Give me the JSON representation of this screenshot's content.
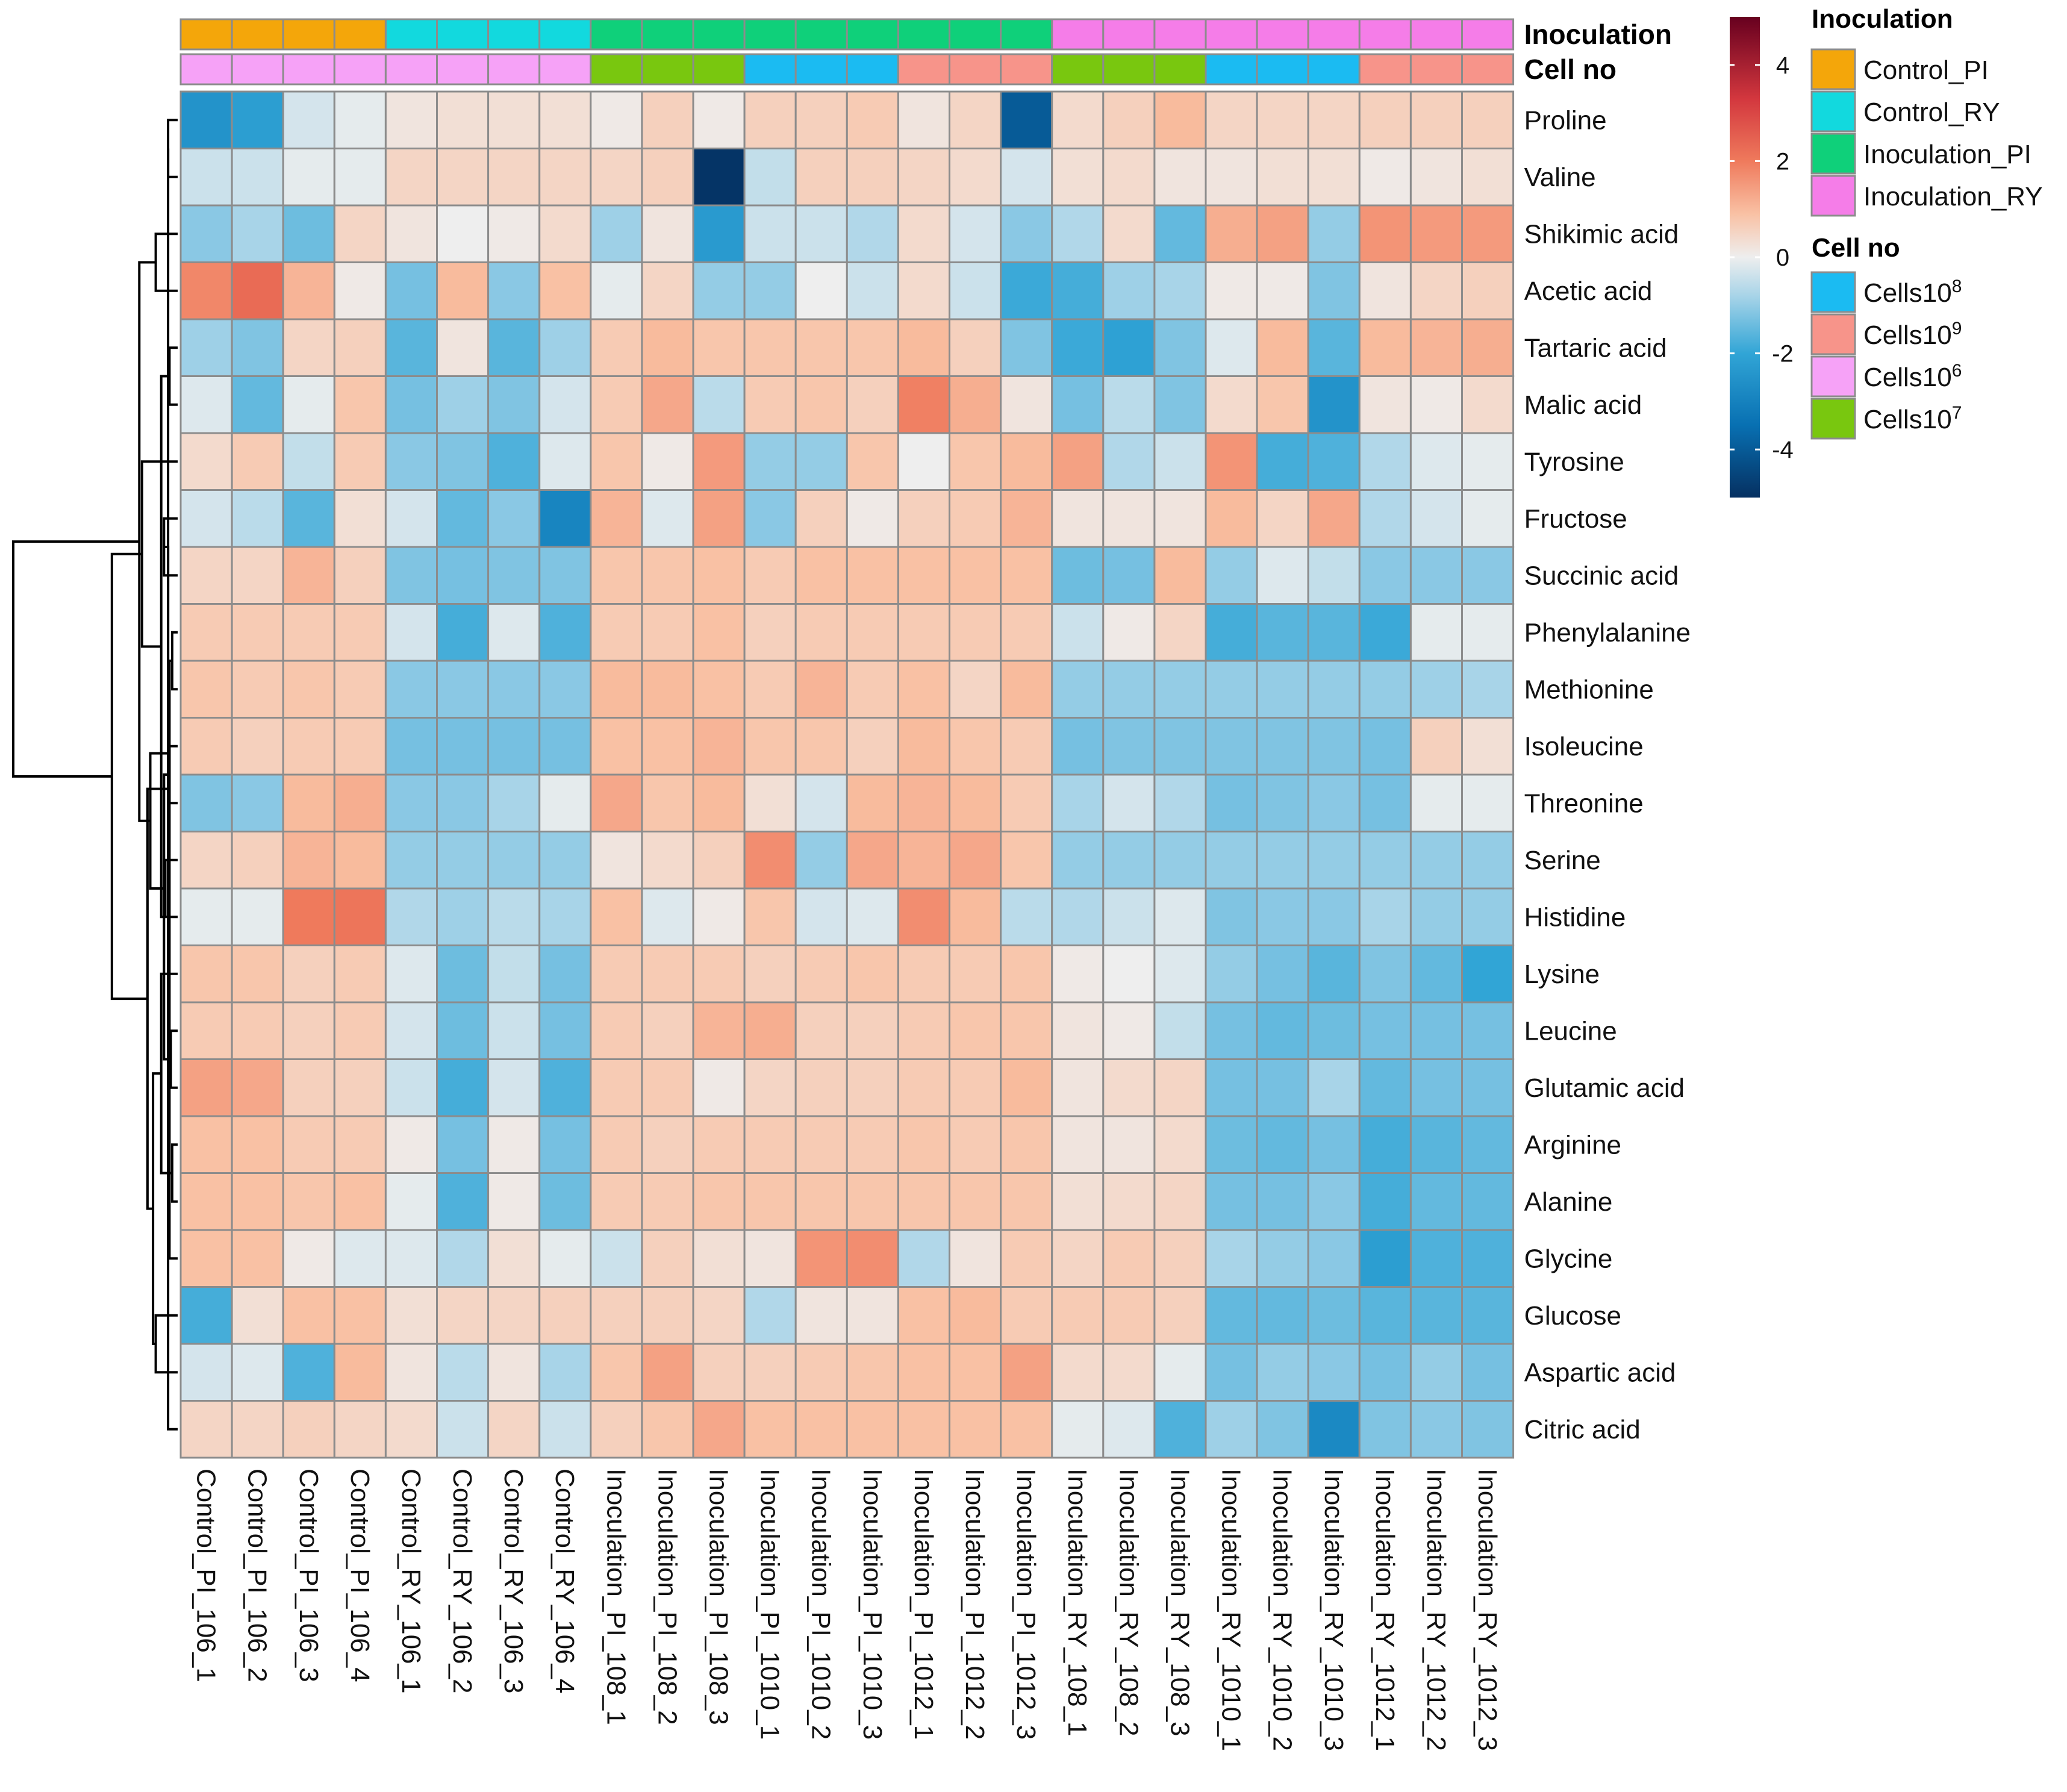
{
  "chart_data": {
    "type": "heatmap",
    "title": "",
    "rows": [
      "Proline",
      "Valine",
      "Shikimic acid",
      "Acetic acid",
      "Tartaric acid",
      "Malic acid",
      "Tyrosine",
      "Fructose",
      "Succinic acid",
      "Phenylalanine",
      "Methionine",
      "Isoleucine",
      "Threonine",
      "Serine",
      "Histidine",
      "Lysine",
      "Leucine",
      "Glutamic acid",
      "Arginine",
      "Alanine",
      "Glycine",
      "Glucose",
      "Aspartic acid",
      "Citric acid"
    ],
    "columns": [
      "Control_PI_106_1",
      "Control_PI_106_2",
      "Control_PI_106_3",
      "Control_PI_106_4",
      "Control_RY_106_1",
      "Control_RY_106_2",
      "Control_RY_106_3",
      "Control_RY_106_4",
      "Inoculation_PI_108_1",
      "Inoculation_PI_108_2",
      "Inoculation_PI_108_3",
      "Inoculation_PI_1010_1",
      "Inoculation_PI_1010_2",
      "Inoculation_PI_1010_3",
      "Inoculation_PI_1012_1",
      "Inoculation_PI_1012_2",
      "Inoculation_PI_1012_3",
      "Inoculation_RY_108_1",
      "Inoculation_RY_108_2",
      "Inoculation_RY_108_3",
      "Inoculation_RY_1010_1",
      "Inoculation_RY_1010_2",
      "Inoculation_RY_1010_3",
      "Inoculation_RY_1012_1",
      "Inoculation_RY_1012_2",
      "Inoculation_RY_1012_3"
    ],
    "values": [
      [
        -2.5,
        -2.2,
        -0.3,
        -0.1,
        0.2,
        0.3,
        0.3,
        0.3,
        0.1,
        0.6,
        0.1,
        0.6,
        0.6,
        0.7,
        0.2,
        0.5,
        -4.0,
        0.4,
        0.6,
        1.0,
        0.5,
        0.5,
        0.5,
        0.6,
        0.6,
        0.6
      ],
      [
        -0.4,
        -0.4,
        -0.1,
        -0.1,
        0.5,
        0.5,
        0.5,
        0.5,
        0.5,
        0.6,
        -4.9,
        -0.5,
        0.6,
        0.6,
        0.5,
        0.4,
        -0.3,
        0.3,
        0.4,
        0.2,
        0.2,
        0.3,
        0.3,
        0.1,
        0.2,
        0.3
      ],
      [
        -1.1,
        -0.8,
        -1.4,
        0.5,
        0.2,
        0.0,
        0.1,
        0.4,
        -0.9,
        0.2,
        -2.3,
        -0.4,
        -0.4,
        -0.7,
        0.4,
        -0.3,
        -1.1,
        -0.7,
        0.4,
        -1.5,
        1.2,
        1.4,
        -1.0,
        1.6,
        1.5,
        1.5
      ],
      [
        1.8,
        2.3,
        1.1,
        0.1,
        -1.3,
        1.0,
        -1.1,
        0.9,
        -0.1,
        0.5,
        -1.0,
        -1.0,
        0.0,
        -0.4,
        0.4,
        -0.4,
        -1.9,
        -1.8,
        -0.9,
        -0.8,
        0.1,
        0.1,
        -1.2,
        0.2,
        0.5,
        0.6
      ],
      [
        -0.9,
        -1.2,
        0.5,
        0.6,
        -1.6,
        0.2,
        -1.6,
        -0.9,
        0.7,
        1.0,
        0.8,
        0.8,
        0.8,
        0.8,
        1.0,
        0.6,
        -1.2,
        -1.9,
        -2.1,
        -1.2,
        -0.2,
        1.0,
        -1.6,
        1.0,
        1.1,
        1.2
      ],
      [
        -0.2,
        -1.5,
        -0.1,
        0.8,
        -1.3,
        -0.9,
        -1.2,
        -0.3,
        0.7,
        1.3,
        -0.6,
        0.7,
        0.8,
        0.6,
        1.9,
        1.2,
        0.2,
        -1.3,
        -0.6,
        -1.2,
        0.4,
        0.8,
        -2.5,
        0.2,
        0.1,
        0.4
      ],
      [
        0.4,
        0.7,
        -0.5,
        0.7,
        -1.1,
        -1.2,
        -1.7,
        -0.2,
        0.8,
        0.1,
        1.5,
        -1.0,
        -1.0,
        0.8,
        0.0,
        0.8,
        1.0,
        1.4,
        -0.7,
        -0.4,
        1.6,
        -1.8,
        -1.7,
        -0.7,
        -0.2,
        -0.1
      ],
      [
        -0.3,
        -0.6,
        -1.6,
        0.3,
        -0.3,
        -1.5,
        -1.1,
        -2.9,
        1.1,
        -0.2,
        1.4,
        -1.1,
        0.6,
        0.1,
        0.6,
        0.7,
        1.1,
        0.2,
        0.2,
        0.2,
        1.0,
        0.5,
        1.3,
        -0.7,
        -0.3,
        -0.1
      ],
      [
        0.5,
        0.5,
        1.1,
        0.6,
        -1.2,
        -1.3,
        -1.2,
        -1.2,
        0.8,
        0.8,
        0.9,
        0.7,
        0.9,
        0.9,
        0.9,
        0.9,
        0.9,
        -1.4,
        -1.3,
        1.0,
        -1.0,
        -0.2,
        -0.5,
        -1.1,
        -1.1,
        -1.1
      ],
      [
        0.7,
        0.7,
        0.7,
        0.7,
        -0.3,
        -1.8,
        -0.2,
        -1.7,
        0.7,
        0.7,
        0.9,
        0.6,
        0.7,
        0.7,
        0.7,
        0.7,
        0.7,
        -0.4,
        0.1,
        0.5,
        -1.8,
        -1.6,
        -1.6,
        -1.9,
        -0.1,
        -0.1
      ],
      [
        0.8,
        0.7,
        0.8,
        0.7,
        -1.1,
        -1.1,
        -1.1,
        -1.1,
        1.0,
        1.0,
        0.9,
        0.7,
        1.1,
        0.7,
        0.9,
        0.5,
        1.0,
        -1.0,
        -1.0,
        -1.0,
        -1.0,
        -1.0,
        -1.0,
        -1.0,
        -0.9,
        -0.8
      ],
      [
        0.7,
        0.6,
        0.7,
        0.7,
        -1.3,
        -1.3,
        -1.3,
        -1.3,
        0.9,
        0.9,
        1.1,
        0.8,
        0.8,
        0.6,
        1.0,
        0.8,
        0.7,
        -1.3,
        -1.2,
        -1.2,
        -1.2,
        -1.2,
        -1.2,
        -1.3,
        0.6,
        0.3
      ],
      [
        -1.2,
        -1.1,
        1.0,
        1.2,
        -1.1,
        -1.1,
        -0.8,
        -0.1,
        1.3,
        0.8,
        1.0,
        0.3,
        -0.3,
        1.0,
        1.1,
        1.0,
        0.7,
        -0.8,
        -0.3,
        -0.7,
        -1.3,
        -1.2,
        -1.1,
        -1.3,
        -0.1,
        -0.1
      ],
      [
        0.5,
        0.6,
        1.1,
        1.0,
        -1.0,
        -1.0,
        -1.0,
        -1.0,
        0.2,
        0.4,
        0.6,
        1.7,
        -1.0,
        1.3,
        1.1,
        1.3,
        0.8,
        -1.0,
        -1.0,
        -1.0,
        -1.0,
        -1.0,
        -1.0,
        -1.0,
        -1.0,
        -1.0
      ],
      [
        -0.1,
        -0.1,
        2.0,
        2.1,
        -0.7,
        -0.9,
        -0.6,
        -0.8,
        0.9,
        -0.2,
        0.1,
        0.8,
        -0.3,
        -0.2,
        1.7,
        1.0,
        -0.6,
        -0.7,
        -0.4,
        -0.2,
        -1.2,
        -1.1,
        -1.1,
        -0.8,
        -1.0,
        -1.0
      ],
      [
        0.8,
        0.8,
        0.6,
        0.7,
        -0.2,
        -1.4,
        -0.5,
        -1.3,
        0.7,
        0.7,
        0.7,
        0.6,
        0.7,
        0.8,
        0.7,
        0.7,
        0.8,
        0.1,
        0.0,
        -0.2,
        -1.0,
        -1.3,
        -1.6,
        -1.2,
        -1.5,
        -2.0
      ],
      [
        0.7,
        0.7,
        0.6,
        0.7,
        -0.3,
        -1.4,
        -0.4,
        -1.3,
        0.7,
        0.6,
        1.1,
        1.2,
        0.6,
        0.6,
        0.7,
        0.8,
        0.8,
        0.2,
        0.1,
        -0.5,
        -1.3,
        -1.5,
        -1.4,
        -1.3,
        -1.3,
        -1.3
      ],
      [
        1.4,
        1.3,
        0.6,
        0.6,
        -0.4,
        -1.8,
        -0.3,
        -1.7,
        0.7,
        0.7,
        0.1,
        0.5,
        0.6,
        0.6,
        0.7,
        0.7,
        1.0,
        0.2,
        0.4,
        0.5,
        -1.3,
        -1.3,
        -0.8,
        -1.5,
        -1.3,
        -1.3
      ],
      [
        0.9,
        0.9,
        0.7,
        0.7,
        0.1,
        -1.3,
        0.1,
        -1.3,
        0.7,
        0.6,
        0.7,
        0.7,
        0.7,
        0.7,
        0.8,
        0.7,
        0.8,
        0.2,
        0.2,
        0.4,
        -1.4,
        -1.5,
        -1.3,
        -1.8,
        -1.6,
        -1.5
      ],
      [
        0.9,
        0.9,
        0.8,
        0.9,
        -0.1,
        -1.7,
        0.1,
        -1.4,
        0.7,
        0.7,
        0.8,
        0.8,
        0.8,
        0.8,
        0.8,
        0.8,
        0.8,
        0.3,
        0.4,
        0.5,
        -1.3,
        -1.3,
        -1.1,
        -1.8,
        -1.5,
        -1.5
      ],
      [
        0.9,
        0.9,
        0.1,
        -0.2,
        -0.2,
        -0.7,
        0.3,
        -0.1,
        -0.4,
        0.6,
        0.3,
        0.2,
        1.6,
        1.7,
        -0.7,
        0.2,
        0.7,
        0.5,
        0.7,
        0.6,
        -0.8,
        -1.0,
        -1.1,
        -2.2,
        -1.7,
        -1.7
      ],
      [
        -1.8,
        0.3,
        0.9,
        0.9,
        0.3,
        0.5,
        0.5,
        0.6,
        0.6,
        0.6,
        0.5,
        -0.7,
        0.2,
        0.2,
        0.9,
        1.0,
        0.7,
        0.7,
        0.7,
        0.6,
        -1.5,
        -1.5,
        -1.4,
        -1.6,
        -1.6,
        -1.6
      ],
      [
        -0.3,
        -0.2,
        -1.7,
        1.0,
        0.2,
        -0.6,
        0.2,
        -0.8,
        0.8,
        1.4,
        0.6,
        0.6,
        0.7,
        0.8,
        0.9,
        0.9,
        1.4,
        0.4,
        0.4,
        -0.1,
        -1.3,
        -1.0,
        -1.1,
        -1.3,
        -1.0,
        -1.3
      ],
      [
        0.5,
        0.5,
        0.6,
        0.5,
        0.4,
        -0.4,
        0.5,
        -0.4,
        0.6,
        0.8,
        1.3,
        0.9,
        0.9,
        0.9,
        0.9,
        0.9,
        0.9,
        -0.1,
        -0.2,
        -1.7,
        -0.9,
        -1.2,
        -2.8,
        -1.2,
        -1.1,
        -1.2
      ]
    ],
    "color_scale": {
      "range": [
        -5,
        5
      ],
      "ticks": [
        4,
        2,
        0,
        -2,
        -4
      ],
      "stops": [
        {
          "value": -5,
          "color": "#053061"
        },
        {
          "value": -3.5,
          "color": "#0870b2"
        },
        {
          "value": -2,
          "color": "#31a5d6"
        },
        {
          "value": -0.8,
          "color": "#a8d4e8"
        },
        {
          "value": 0,
          "color": "#eeeeee"
        },
        {
          "value": 0.9,
          "color": "#f9c1a4"
        },
        {
          "value": 2,
          "color": "#ef7a5c"
        },
        {
          "value": 3.3,
          "color": "#d3373e"
        },
        {
          "value": 5,
          "color": "#67001f"
        }
      ]
    },
    "annotation_tracks": [
      {
        "name": "Inoculation",
        "values": [
          "Control_PI",
          "Control_PI",
          "Control_PI",
          "Control_PI",
          "Control_RY",
          "Control_RY",
          "Control_RY",
          "Control_RY",
          "Inoculation_PI",
          "Inoculation_PI",
          "Inoculation_PI",
          "Inoculation_PI",
          "Inoculation_PI",
          "Inoculation_PI",
          "Inoculation_PI",
          "Inoculation_PI",
          "Inoculation_PI",
          "Inoculation_RY",
          "Inoculation_RY",
          "Inoculation_RY",
          "Inoculation_RY",
          "Inoculation_RY",
          "Inoculation_RY",
          "Inoculation_RY",
          "Inoculation_RY",
          "Inoculation_RY"
        ]
      },
      {
        "name": "Cell no",
        "values": [
          "Cells10^6",
          "Cells10^6",
          "Cells10^6",
          "Cells10^6",
          "Cells10^6",
          "Cells10^6",
          "Cells10^6",
          "Cells10^6",
          "Cells10^7",
          "Cells10^7",
          "Cells10^7",
          "Cells10^8",
          "Cells10^8",
          "Cells10^8",
          "Cells10^9",
          "Cells10^9",
          "Cells10^9",
          "Cells10^7",
          "Cells10^7",
          "Cells10^7",
          "Cells10^8",
          "Cells10^8",
          "Cells10^8",
          "Cells10^9",
          "Cells10^9",
          "Cells10^9"
        ]
      }
    ],
    "legends": [
      {
        "title": "Inoculation",
        "items": [
          {
            "key": "Control_PI",
            "label": "Control_PI",
            "color": "#f4a60a"
          },
          {
            "key": "Control_RY",
            "label": "Control_RY",
            "color": "#12d9de"
          },
          {
            "key": "Inoculation_PI",
            "label": "Inoculation_PI",
            "color": "#0fd07a"
          },
          {
            "key": "Inoculation_RY",
            "label": "Inoculation_RY",
            "color": "#f57de8"
          }
        ]
      },
      {
        "title": "Cell no",
        "items": [
          {
            "key": "Cells10^8",
            "base": "Cells10",
            "sup": "8",
            "color": "#1bbbf2"
          },
          {
            "key": "Cells10^9",
            "base": "Cells10",
            "sup": "9",
            "color": "#f7948a"
          },
          {
            "key": "Cells10^6",
            "base": "Cells10",
            "sup": "6",
            "color": "#f6a2f7"
          },
          {
            "key": "Cells10^7",
            "base": "Cells10",
            "sup": "7",
            "color": "#79c70f"
          }
        ]
      }
    ],
    "row_dendrogram": {
      "merges": [
        [
          0,
          1,
          0.35
        ],
        [
          4,
          5,
          0.3
        ],
        [
          9,
          10,
          0.2
        ],
        [
          11,
          12,
          0.3
        ],
        [
          18,
          19,
          0.2
        ],
        [
          16,
          17,
          0.25
        ],
        [
          23,
          24,
          0.35
        ],
        [
          2,
          3,
          0.8
        ],
        [
          7,
          8,
          0.5
        ],
        [
          13,
          14,
          0.45
        ],
        [
          20,
          26,
          0.3
        ],
        [
          29,
          27,
          0.5
        ],
        [
          15,
          28,
          0.6
        ],
        [
          21,
          22,
          0.8
        ],
        [
          32,
          34,
          0.35
        ],
        [
          25,
          35,
          0.6
        ],
        [
          36,
          37,
          0.9
        ],
        [
          38,
          33,
          1.0
        ],
        [
          6,
          39,
          1.3
        ],
        [
          30,
          40,
          1.1
        ],
        [
          31,
          41,
          1.4
        ],
        [
          42,
          43,
          2.4
        ],
        [
          44,
          45,
          6.0
        ]
      ]
    }
  }
}
